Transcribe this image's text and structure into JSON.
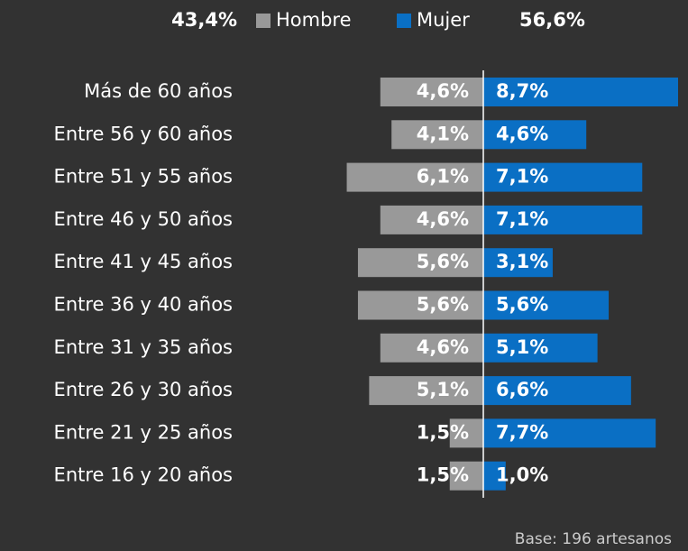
{
  "chart_data": {
    "type": "diverging_bar",
    "categories": [
      "Más de 60 años",
      "Entre 56 y 60 años",
      "Entre 51 y 55 años",
      "Entre 46 y 50 años",
      "Entre 41 y 45 años",
      "Entre 36 y 40 años",
      "Entre 31 y 35 años",
      "Entre 26 y 30 años",
      "Entre 21 y 25 años",
      "Entre 16 y 20 años"
    ],
    "series": [
      {
        "name": "Hombre",
        "color": "#999999",
        "total": 43.4,
        "total_label": "43,4%",
        "values": [
          4.6,
          4.1,
          6.1,
          4.6,
          5.6,
          5.6,
          4.6,
          5.1,
          1.5,
          1.5
        ],
        "value_labels": [
          "4,6%",
          "4,1%",
          "6,1%",
          "4,6%",
          "5,6%",
          "5,6%",
          "4,6%",
          "5,1%",
          "1,5%",
          "1,5%"
        ]
      },
      {
        "name": "Mujer",
        "color": "#0a6fc4",
        "total": 56.6,
        "total_label": "56,6%",
        "values": [
          8.7,
          4.6,
          7.1,
          7.1,
          3.1,
          5.6,
          5.1,
          6.6,
          7.7,
          1.0
        ],
        "value_labels": [
          "8,7%",
          "4,6%",
          "7,1%",
          "7,1%",
          "3,1%",
          "5,6%",
          "5,1%",
          "6,6%",
          "7,7%",
          "1,0%"
        ]
      }
    ],
    "note": "Base: 196 artesanos"
  }
}
